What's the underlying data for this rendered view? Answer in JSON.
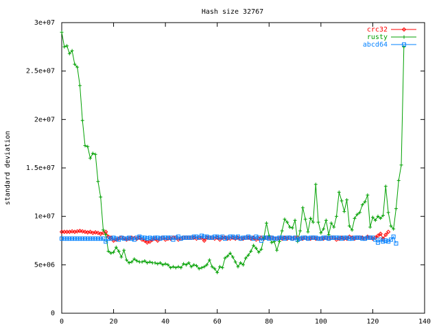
{
  "chart_data": {
    "type": "line",
    "title": "Hash size 32767",
    "xlabel": "",
    "ylabel": "standard deviation",
    "xlim": [
      0,
      140
    ],
    "ylim": [
      0,
      30000000
    ],
    "x_ticks": [
      0,
      20,
      40,
      60,
      80,
      100,
      120,
      140
    ],
    "x_tick_labels": [
      "0",
      "20",
      "40",
      "60",
      "80",
      "100",
      "120",
      "140"
    ],
    "y_ticks": [
      0,
      5000000,
      10000000,
      15000000,
      20000000,
      25000000,
      30000000
    ],
    "y_tick_labels": [
      "0",
      "5e+06",
      "1e+07",
      "1.5e+07",
      "2e+07",
      "2.5e+07",
      "3e+07"
    ],
    "grid": false,
    "legend_position": "top-right",
    "series": [
      {
        "name": "crc32",
        "color": "#ff0000",
        "marker": "diamond",
        "values": [
          8400000,
          8400000,
          8400000,
          8400000,
          8450000,
          8400000,
          8450000,
          8500000,
          8450000,
          8400000,
          8350000,
          8400000,
          8300000,
          8350000,
          8300000,
          8200000,
          8300000,
          8400000,
          7900000,
          7800000,
          7500000,
          7600000,
          7700000,
          7800000,
          7750000,
          7600000,
          7700000,
          7800000,
          7750000,
          7700000,
          7800000,
          7600000,
          7500000,
          7300000,
          7400000,
          7600000,
          7700000,
          7500000,
          7700000,
          7800000,
          7600000,
          7700000,
          7700000,
          7800000,
          7800000,
          7600000,
          7700000,
          7800000,
          7800000,
          7800000,
          7800000,
          7800000,
          7700000,
          7800000,
          7800000,
          7500000,
          7800000,
          7800000,
          7800000,
          7700000,
          7800000,
          7600000,
          7800000,
          7800000,
          7700000,
          7700000,
          7800000,
          7700000,
          7800000,
          7700000,
          7700000,
          7800000,
          7800000,
          7700000,
          7800000,
          7600000,
          7700000,
          7800000,
          7700000,
          7800000,
          7800000,
          7800000,
          7700000,
          7700000,
          7700000,
          7700000,
          7800000,
          7700000,
          7800000,
          7700000,
          7800000,
          7800000,
          7700000,
          7700000,
          7800000,
          7700000,
          7700000,
          7800000,
          7700000,
          7700000,
          7700000,
          7700000,
          7800000,
          7700000,
          7800000,
          7800000,
          7600000,
          7700000,
          7800000,
          7700000,
          7700000,
          7900000,
          7800000,
          7700000,
          7800000,
          7800000,
          7800000,
          7700000,
          7900000,
          7800000,
          7700000,
          7800000,
          8000000,
          8200000,
          7700000,
          8100000,
          8400000
        ]
      },
      {
        "name": "rusty",
        "color": "#00a000",
        "marker": "plus",
        "values": [
          29000000,
          27500000,
          27600000,
          26800000,
          27100000,
          25700000,
          25400000,
          23500000,
          19900000,
          17300000,
          17200000,
          16000000,
          16500000,
          16400000,
          13600000,
          12000000,
          8600000,
          8100000,
          6400000,
          6200000,
          6300000,
          6800000,
          6400000,
          5800000,
          6500000,
          5500000,
          5200000,
          5300000,
          5600000,
          5400000,
          5300000,
          5300000,
          5400000,
          5200000,
          5300000,
          5200000,
          5200000,
          5100000,
          5200000,
          5000000,
          5100000,
          5000000,
          4700000,
          4800000,
          4700000,
          4800000,
          4700000,
          5100000,
          5000000,
          5200000,
          4800000,
          5000000,
          4900000,
          4600000,
          4700000,
          4800000,
          5000000,
          5500000,
          4800000,
          4600000,
          4200000,
          4800000,
          4700000,
          5700000,
          5900000,
          6200000,
          5800000,
          5300000,
          4800000,
          5200000,
          5000000,
          5700000,
          6000000,
          6400000,
          7000000,
          6700000,
          6300000,
          6600000,
          7800000,
          9300000,
          8000000,
          7300000,
          7400000,
          6500000,
          7400000,
          8500000,
          9700000,
          9400000,
          8900000,
          8800000,
          9600000,
          7400000,
          8500000,
          10900000,
          9700000,
          8400000,
          9800000,
          9400000,
          13300000,
          9400000,
          8300000,
          8700000,
          9600000,
          8100000,
          9300000,
          8900000,
          10000000,
          12500000,
          11600000,
          10500000,
          11700000,
          9000000,
          8600000,
          9800000,
          10200000,
          10400000,
          11200000,
          11500000,
          12200000,
          8900000,
          9900000,
          9600000,
          10000000,
          9800000,
          10100000,
          13100000,
          10400000,
          9000000,
          8700000,
          10800000,
          13700000,
          15300000,
          27500000
        ]
      },
      {
        "name": "abcd64",
        "color": "#0080ff",
        "marker": "square",
        "values": [
          7700000,
          7700000,
          7700000,
          7700000,
          7700000,
          7700000,
          7700000,
          7700000,
          7700000,
          7700000,
          7700000,
          7700000,
          7700000,
          7700000,
          7700000,
          7700000,
          7700000,
          7400000,
          7700000,
          7700000,
          7800000,
          7700000,
          7600000,
          7800000,
          7700000,
          7700000,
          7800000,
          7700000,
          7600000,
          7800000,
          7900000,
          7800000,
          7800000,
          7700000,
          7800000,
          7700000,
          7800000,
          7800000,
          7700000,
          7800000,
          7800000,
          7800000,
          7800000,
          7600000,
          7800000,
          7900000,
          7700000,
          7800000,
          7800000,
          7800000,
          7800000,
          7900000,
          7900000,
          7800000,
          8000000,
          7900000,
          7900000,
          7800000,
          7800000,
          7900000,
          7900000,
          7800000,
          7900000,
          7700000,
          7800000,
          7900000,
          7900000,
          7800000,
          7900000,
          7700000,
          7800000,
          7800000,
          7900000,
          7800000,
          7700000,
          7900000,
          7800000,
          7500000,
          7800000,
          7800000,
          7700000,
          7800000,
          7700000,
          7700000,
          7800000,
          7800000,
          7700000,
          7800000,
          7800000,
          7700000,
          7800000,
          7600000,
          7700000,
          7800000,
          7800000,
          7700000,
          7800000,
          7800000,
          7800000,
          7700000,
          7700000,
          7800000,
          7800000,
          7700000,
          7800000,
          7800000,
          7800000,
          7800000,
          7700000,
          7800000,
          7800000,
          7700000,
          7700000,
          7800000,
          7800000,
          7800000,
          7700000,
          7700000,
          7800000,
          7800000,
          7800000,
          7600000,
          7300000,
          7600000,
          7400000,
          7500000,
          7400000,
          7600000,
          7900000,
          7200000
        ]
      }
    ]
  }
}
